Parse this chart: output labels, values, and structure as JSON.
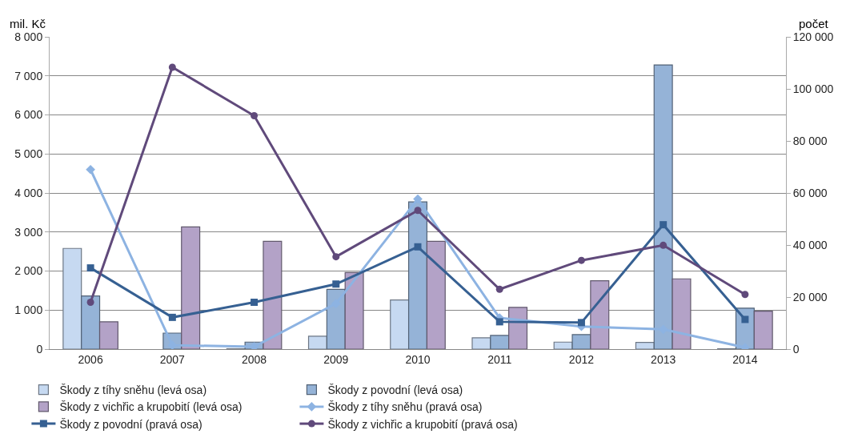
{
  "chart_data": {
    "type": "bar",
    "ylabel": "mil. Kč",
    "y2label": "počet",
    "categories": [
      "2006",
      "2007",
      "2008",
      "2009",
      "2010",
      "2011",
      "2012",
      "2013",
      "2014"
    ],
    "series": [
      {
        "name": "Škody z tíhy sněhu (levá osa)",
        "color": "#c6d9f1",
        "values": [
          2580,
          null,
          10,
          330,
          1260,
          290,
          180,
          170,
          10
        ]
      },
      {
        "name": "Škody z povodní (levá osa)",
        "color": "#95b3d7",
        "values": [
          1360,
          410,
          180,
          1530,
          3770,
          350,
          370,
          7280,
          1050
        ]
      },
      {
        "name": "Škody z vichřic a krupobití (levá osa)",
        "color": "#b3a2c7",
        "values": [
          700,
          3130,
          2760,
          1960,
          2760,
          1070,
          1750,
          1800,
          970
        ]
      },
      {
        "name": "Škody z tíhy sněhu (pravá osa)",
        "type": "line",
        "axis": "y2",
        "marker": "diamond",
        "color": "#8db3e2",
        "values": [
          69000,
          1500,
          900,
          17500,
          57700,
          12000,
          8700,
          7600,
          600
        ]
      },
      {
        "name": "Škody z povodní (pravá osa)",
        "type": "line",
        "axis": "y2",
        "marker": "square",
        "color": "#366092",
        "values": [
          31200,
          12200,
          18000,
          25000,
          39300,
          10500,
          10200,
          47800,
          11400
        ]
      },
      {
        "name": "Škody z vichřic a krupobití (pravá osa)",
        "type": "line",
        "axis": "y2",
        "marker": "circle",
        "color": "#604a7b",
        "values": [
          18000,
          108300,
          89700,
          35500,
          53300,
          23000,
          34100,
          39900,
          21000
        ]
      }
    ],
    "ylim": [
      0,
      8000
    ],
    "yticks": [
      0,
      {
        "value": 1000,
        "label": "1 000"
      },
      {
        "value": 2000,
        "label": "2 000"
      },
      {
        "value": 3000,
        "label": "3 000"
      },
      {
        "value": 4000,
        "label": "4 000"
      },
      {
        "value": 5000,
        "label": "5 000"
      },
      {
        "value": 6000,
        "label": "6 000"
      },
      {
        "value": 7000,
        "label": "7 000"
      },
      {
        "value": 8000,
        "label": "8 000"
      }
    ],
    "y2lim": [
      0,
      120000
    ],
    "y2ticks": [
      0,
      {
        "value": 20000,
        "label": "20 000"
      },
      {
        "value": 40000,
        "label": "40 000"
      },
      {
        "value": 60000,
        "label": "60 000"
      },
      {
        "value": 80000,
        "label": "80 000"
      },
      {
        "value": 100000,
        "label": "100 000"
      },
      {
        "value": 120000,
        "label": "120 000"
      }
    ],
    "grid": "y",
    "legend": "bottom"
  }
}
